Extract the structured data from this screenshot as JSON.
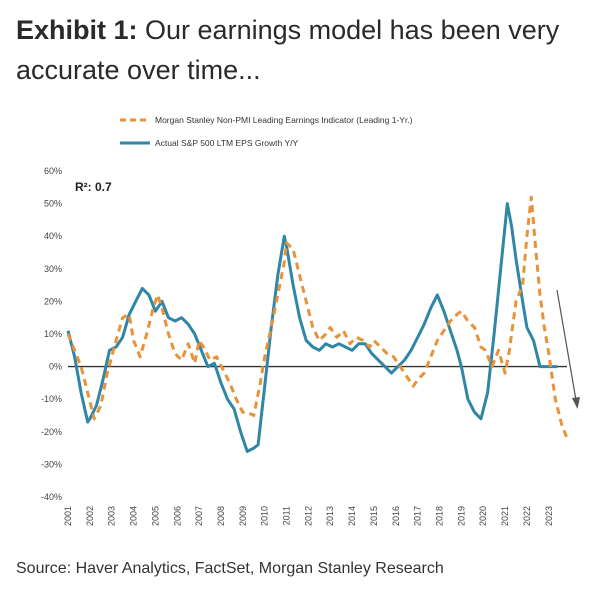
{
  "header": {
    "exhibit_label": "Exhibit 1:",
    "title_text": "Our earnings model has been very accurate over time..."
  },
  "footer": {
    "source": "Source: Haver Analytics, FactSet, Morgan Stanley Research"
  },
  "colors": {
    "indicator": "#E8923A",
    "actual": "#2F86A6",
    "zero_line": "#333333",
    "arrow": "#555555"
  },
  "chart_data": {
    "type": "line",
    "annotation": "R²: 0.7",
    "ylim": [
      -40,
      60
    ],
    "yticks": [
      -40,
      -30,
      -20,
      -10,
      0,
      10,
      20,
      30,
      40,
      50,
      60
    ],
    "ytick_labels": [
      "-40%",
      "-30%",
      "-20%",
      "-10%",
      "0%",
      "10%",
      "20%",
      "30%",
      "40%",
      "50%",
      "60%"
    ],
    "xlim": [
      2001,
      2024.2
    ],
    "xticks": [
      2001,
      2002,
      2003,
      2004,
      2005,
      2006,
      2007,
      2008,
      2009,
      2010,
      2011,
      2012,
      2013,
      2014,
      2015,
      2016,
      2017,
      2018,
      2019,
      2020,
      2021,
      2022,
      2023
    ],
    "xtick_labels": [
      "2001",
      "2002",
      "2003",
      "2004",
      "2005",
      "2006",
      "2007",
      "2008",
      "2009",
      "2010",
      "2011",
      "2012",
      "2013",
      "2014",
      "2015",
      "2016",
      "2017",
      "2018",
      "2019",
      "2020",
      "2021",
      "2022",
      "2023"
    ],
    "legend_position": "top",
    "series": [
      {
        "name": "Morgan Stanley Non-PMI Leading Earnings Indicator (Leading 1-Yr.)",
        "style": "dashed",
        "color": "#E8923A",
        "x": [
          2001.0,
          2001.3,
          2001.6,
          2001.9,
          2002.2,
          2002.5,
          2002.8,
          2003.0,
          2003.2,
          2003.5,
          2003.8,
          2004.0,
          2004.3,
          2004.6,
          2004.9,
          2005.1,
          2005.3,
          2005.6,
          2005.9,
          2006.2,
          2006.5,
          2006.8,
          2007.0,
          2007.2,
          2007.5,
          2007.8,
          2008.1,
          2008.4,
          2008.7,
          2009.0,
          2009.2,
          2009.5,
          2009.8,
          2010.0,
          2010.3,
          2010.6,
          2010.9,
          2011.0,
          2011.3,
          2011.6,
          2011.9,
          2012.2,
          2012.5,
          2012.8,
          2013.0,
          2013.3,
          2013.6,
          2013.9,
          2014.2,
          2014.5,
          2014.8,
          2015.0,
          2015.3,
          2015.6,
          2015.9,
          2016.2,
          2016.5,
          2016.8,
          2017.0,
          2017.3,
          2017.6,
          2017.9,
          2018.2,
          2018.5,
          2018.8,
          2019.0,
          2019.3,
          2019.6,
          2019.9,
          2020.1,
          2020.4,
          2020.7,
          2021.0,
          2021.2,
          2021.5,
          2021.8,
          2022.0,
          2022.2,
          2022.4,
          2022.6,
          2022.8,
          2023.0,
          2023.3,
          2023.6,
          2023.9
        ],
        "y": [
          10,
          5,
          0,
          -8,
          -16,
          -12,
          -2,
          3,
          8,
          15,
          16,
          8,
          3,
          10,
          18,
          22,
          18,
          10,
          4,
          2,
          7,
          1,
          8,
          6,
          2,
          3,
          -1,
          -5,
          -10,
          -14,
          -14,
          -15,
          -5,
          3,
          12,
          22,
          32,
          38,
          36,
          28,
          20,
          12,
          8,
          10,
          12,
          9,
          11,
          7,
          9,
          8,
          6,
          8,
          6,
          4,
          3,
          0,
          -3,
          -6,
          -4,
          -2,
          3,
          8,
          11,
          14,
          16,
          17,
          14,
          12,
          6,
          5,
          0,
          5,
          -2,
          5,
          20,
          25,
          40,
          52,
          36,
          22,
          12,
          4,
          -10,
          -18,
          -23
        ]
      },
      {
        "name": "Actual S&P 500 LTM EPS Growth Y/Y",
        "style": "solid",
        "color": "#2F86A6",
        "x": [
          2001.0,
          2001.3,
          2001.6,
          2001.9,
          2002.0,
          2002.3,
          2002.6,
          2002.9,
          2003.2,
          2003.5,
          2003.8,
          2004.1,
          2004.4,
          2004.7,
          2005.0,
          2005.3,
          2005.6,
          2005.9,
          2006.2,
          2006.5,
          2006.8,
          2007.1,
          2007.4,
          2007.7,
          2008.0,
          2008.3,
          2008.6,
          2008.9,
          2009.2,
          2009.5,
          2009.7,
          2010.0,
          2010.3,
          2010.6,
          2010.9,
          2011.0,
          2011.3,
          2011.6,
          2011.9,
          2012.2,
          2012.5,
          2012.8,
          2013.1,
          2013.4,
          2013.7,
          2014.0,
          2014.3,
          2014.6,
          2014.9,
          2015.2,
          2015.5,
          2015.8,
          2016.1,
          2016.4,
          2016.7,
          2017.0,
          2017.3,
          2017.6,
          2017.9,
          2018.2,
          2018.5,
          2018.8,
          2019.0,
          2019.3,
          2019.6,
          2019.9,
          2020.2,
          2020.5,
          2020.8,
          2021.1,
          2021.3,
          2021.5,
          2021.8,
          2022.0,
          2022.3,
          2022.6,
          2022.9,
          2023.1,
          2023.4
        ],
        "y": [
          11,
          3,
          -8,
          -17,
          -16,
          -12,
          -4,
          5,
          6,
          9,
          16,
          20,
          24,
          22,
          17,
          20,
          15,
          14,
          15,
          13,
          10,
          5,
          0,
          1,
          -5,
          -10,
          -13,
          -20,
          -26,
          -25,
          -24,
          -6,
          12,
          28,
          40,
          37,
          25,
          15,
          8,
          6,
          5,
          7,
          6,
          7,
          6,
          5,
          7,
          7,
          4,
          2,
          0,
          -2,
          0,
          2,
          5,
          9,
          13,
          18,
          22,
          17,
          11,
          5,
          0,
          -10,
          -14,
          -16,
          -8,
          10,
          30,
          50,
          43,
          33,
          20,
          12,
          8,
          0,
          0,
          0,
          0
        ]
      }
    ]
  }
}
